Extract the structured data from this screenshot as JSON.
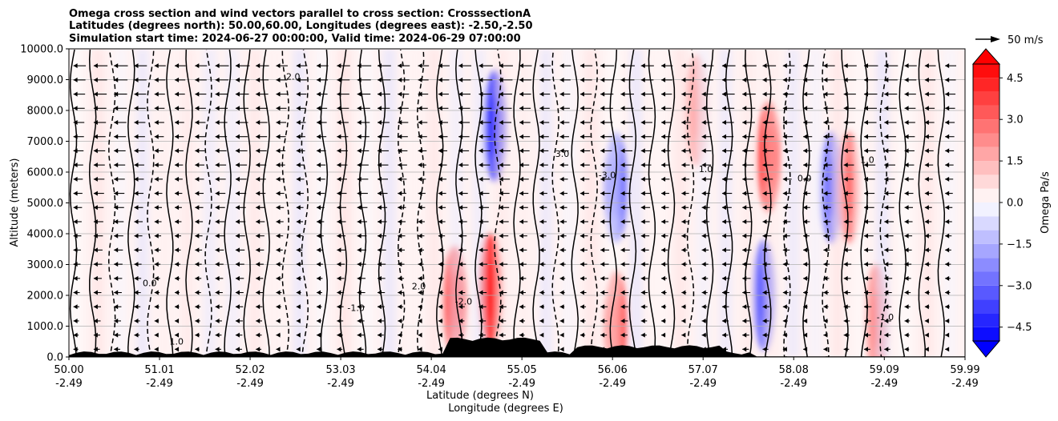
{
  "chart_data": {
    "type": "contour-section",
    "title_lines": [
      "Omega cross section and wind vectors parallel to cross section: CrosssectionA",
      "Latitudes (degrees north): 50.00,60.00, Longitudes (degrees east): -2.50,-2.50",
      "Simulation start time: 2024-06-27 00:00:00, Valid time: 2024-06-29 07:00:00"
    ],
    "xlabel_lat": "Latitude (degrees N)",
    "xlabel_lon": "Longitude (degrees E)",
    "ylabel": "Altitude (meters)",
    "x_range": [
      50.0,
      59.99
    ],
    "y_range": [
      0,
      10000
    ],
    "x_ticks": [
      {
        "lat": "50.00",
        "lon": "-2.49",
        "value": 50.0
      },
      {
        "lat": "51.01",
        "lon": "-2.49",
        "value": 51.01
      },
      {
        "lat": "52.02",
        "lon": "-2.49",
        "value": 52.02
      },
      {
        "lat": "53.03",
        "lon": "-2.49",
        "value": 53.03
      },
      {
        "lat": "54.04",
        "lon": "-2.49",
        "value": 54.04
      },
      {
        "lat": "55.05",
        "lon": "-2.49",
        "value": 55.05
      },
      {
        "lat": "56.06",
        "lon": "-2.49",
        "value": 56.06
      },
      {
        "lat": "57.07",
        "lon": "-2.49",
        "value": 57.07
      },
      {
        "lat": "58.08",
        "lon": "-2.49",
        "value": 58.08
      },
      {
        "lat": "59.09",
        "lon": "-2.49",
        "value": 59.09
      },
      {
        "lat": "59.99",
        "lon": "-2.49",
        "value": 59.99
      }
    ],
    "y_ticks": [
      {
        "label": "0.0",
        "value": 0
      },
      {
        "label": "1000.0",
        "value": 1000
      },
      {
        "label": "2000.0",
        "value": 2000
      },
      {
        "label": "3000.0",
        "value": 3000
      },
      {
        "label": "4000.0",
        "value": 4000
      },
      {
        "label": "5000.0",
        "value": 5000
      },
      {
        "label": "6000.0",
        "value": 6000
      },
      {
        "label": "7000.0",
        "value": 7000
      },
      {
        "label": "8000.0",
        "value": 8000
      },
      {
        "label": "9000.0",
        "value": 9000
      },
      {
        "label": "10000.0",
        "value": 10000
      }
    ],
    "grid": true,
    "colorbar": {
      "label": "Omega Pa/s",
      "range": [
        -5.0,
        5.0
      ],
      "extend": "both",
      "ticks": [
        {
          "label": "4.5",
          "value": 4.5
        },
        {
          "label": "3.0",
          "value": 3.0
        },
        {
          "label": "1.5",
          "value": 1.5
        },
        {
          "label": "0.0",
          "value": 0.0
        },
        {
          "label": "−1.5",
          "value": -1.5
        },
        {
          "label": "−3.0",
          "value": -3.0
        },
        {
          "label": "−4.5",
          "value": -4.5
        }
      ]
    },
    "quiver_key": {
      "label": "50 m/s",
      "magnitude_ms": 50
    },
    "wind_direction": "southward (arrows point toward lower latitude)",
    "omega_features": [
      {
        "center_lat": 54.3,
        "center_alt": 1800,
        "omega": 3.5,
        "kind": "ascent-red"
      },
      {
        "center_lat": 54.7,
        "center_alt": 2200,
        "omega": 4.5,
        "kind": "ascent-red"
      },
      {
        "center_lat": 54.75,
        "center_alt": 7500,
        "omega": -4.0,
        "kind": "descent-blue"
      },
      {
        "center_lat": 56.1,
        "center_alt": 5500,
        "omega": -3.0,
        "kind": "descent-blue"
      },
      {
        "center_lat": 56.1,
        "center_alt": 1000,
        "omega": 3.5,
        "kind": "ascent-red"
      },
      {
        "center_lat": 57.0,
        "center_alt": 8000,
        "omega": 1.5,
        "kind": "ascent-red"
      },
      {
        "center_lat": 57.8,
        "center_alt": 6500,
        "omega": 4.5,
        "kind": "ascent-red"
      },
      {
        "center_lat": 57.75,
        "center_alt": 2000,
        "omega": -3.0,
        "kind": "descent-blue"
      },
      {
        "center_lat": 58.5,
        "center_alt": 5500,
        "omega": -2.5,
        "kind": "descent-blue"
      },
      {
        "center_lat": 58.7,
        "center_alt": 5500,
        "omega": 2.5,
        "kind": "ascent-red"
      },
      {
        "center_lat": 59.0,
        "center_alt": 1200,
        "omega": 2.0,
        "kind": "ascent-red"
      }
    ],
    "contour_labels": [
      "0.0",
      "1.0",
      "-1.0",
      "2.0",
      "-2.0",
      "3.0",
      "-3.0",
      "1.0"
    ]
  }
}
